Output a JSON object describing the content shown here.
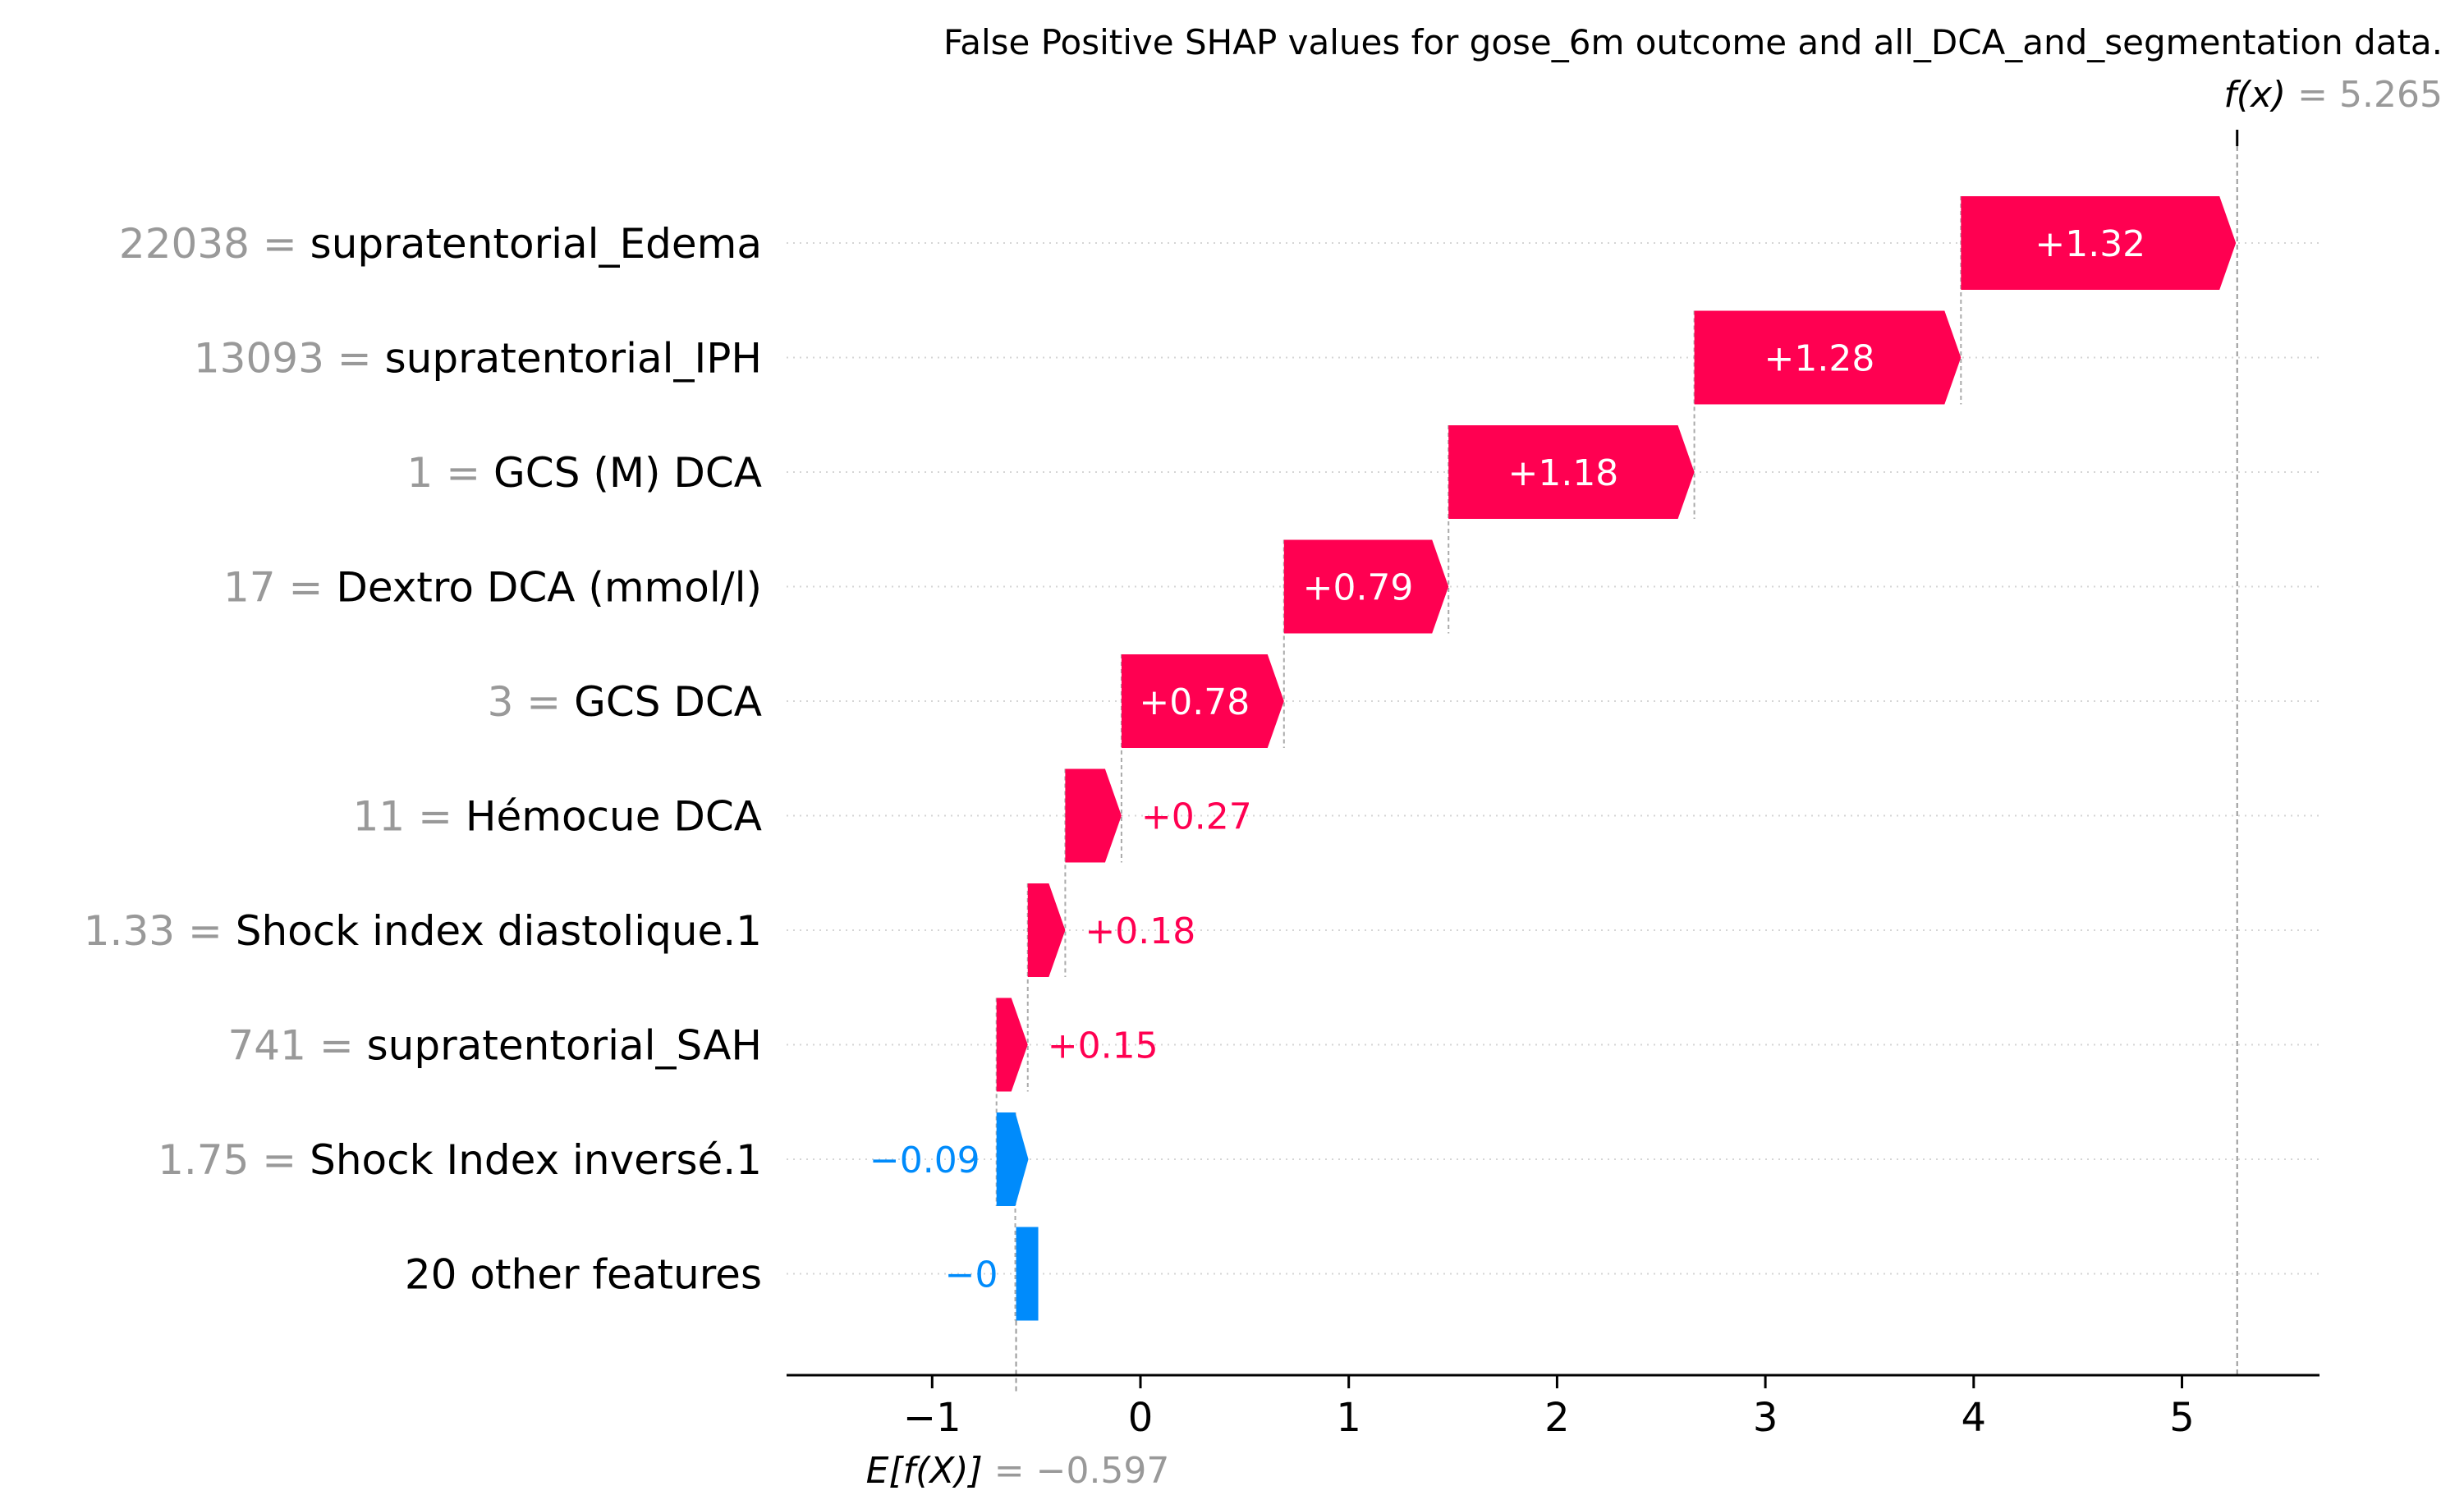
{
  "chart_data": {
    "type": "waterfall",
    "title": "False Positive SHAP values for gose_6m outcome and all_DCA_and_segmentation data.",
    "base_value": -0.597,
    "f_x": 5.265,
    "base_label": "E[f(X)]",
    "base_value_text": "= −0.597",
    "fx_label": "f(x)",
    "fx_value_text": "= 5.265",
    "xlim": [
      -1.7,
      6.65
    ],
    "x_ticks": [
      -1,
      0,
      1,
      2,
      3,
      4,
      5
    ],
    "x_tick_labels": [
      "−1",
      "0",
      "1",
      "2",
      "3",
      "4",
      "5"
    ],
    "colors": {
      "positive": "#ff0051",
      "negative": "#008bfb"
    },
    "features": [
      {
        "value": "22038",
        "name": "supratentorial_Edema",
        "shap": 1.32,
        "label": "+1.32"
      },
      {
        "value": "13093",
        "name": "supratentorial_IPH",
        "shap": 1.28,
        "label": "+1.28"
      },
      {
        "value": "1",
        "name": "GCS (M) DCA",
        "shap": 1.18,
        "label": "+1.18"
      },
      {
        "value": "17",
        "name": "Dextro DCA (mmol/l)",
        "shap": 0.79,
        "label": "+0.79"
      },
      {
        "value": "3",
        "name": "GCS DCA",
        "shap": 0.78,
        "label": "+0.78"
      },
      {
        "value": "11",
        "name": "Hémocue DCA",
        "shap": 0.27,
        "label": "+0.27"
      },
      {
        "value": "1.33",
        "name": "Shock index diastolique.1",
        "shap": 0.18,
        "label": "+0.18"
      },
      {
        "value": "741",
        "name": "supratentorial_SAH",
        "shap": 0.15,
        "label": "+0.15"
      },
      {
        "value": "1.75",
        "name": "Shock Index inversé.1",
        "shap": -0.09,
        "label": "−0.09"
      },
      {
        "value": "",
        "name": "20 other features",
        "shap": -0.004,
        "label": "−0"
      }
    ]
  }
}
